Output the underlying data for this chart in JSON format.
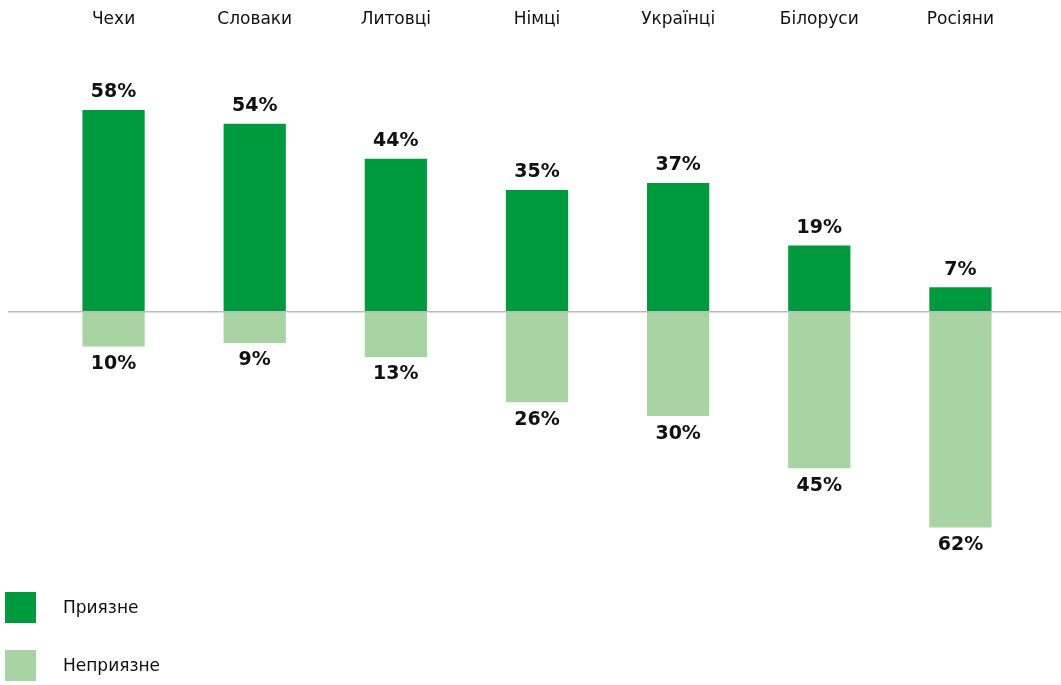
{
  "chart_data": {
    "type": "bar",
    "stacked": true,
    "legend": "bottom left",
    "grid": false,
    "tick_labels": "x",
    "categories": [
      "Чехи",
      "Словаки",
      "Литовці",
      "Німці",
      "Українці",
      "Білоруси",
      "Росіяни"
    ],
    "series": [
      {
        "name": "Приязне",
        "color": "#009a3e",
        "values": [
          58,
          54,
          44,
          35,
          37,
          19,
          7
        ],
        "value_labels": [
          "58%",
          "54%",
          "44%",
          "35%",
          "37%",
          "19%",
          "7%"
        ]
      },
      {
        "name": "Неприязне",
        "color": "#a8d3a3",
        "values": [
          -10,
          -9,
          -13,
          -26,
          -30,
          -45,
          -62
        ]
      }
    ],
    "annotations": [
      {
        "text": "10%",
        "x": "Чехи",
        "y": -10
      },
      {
        "text": "9%",
        "x": "Словаки",
        "y": -9
      },
      {
        "text": "13%",
        "x": "Литовці",
        "y": -13
      },
      {
        "text": "26%",
        "x": "Німці",
        "y": -26
      },
      {
        "text": "30%",
        "x": "Українці",
        "y": -30
      },
      {
        "text": "45%",
        "x": "Білоруси",
        "y": -45
      },
      {
        "text": "62%",
        "x": "Росіяни",
        "y": -62
      }
    ]
  }
}
